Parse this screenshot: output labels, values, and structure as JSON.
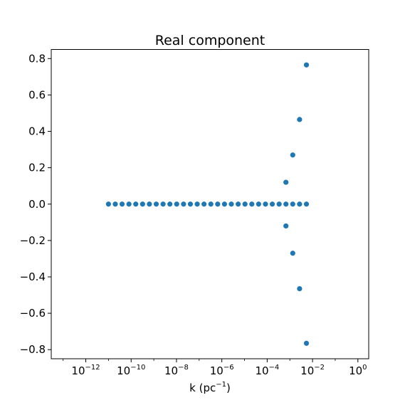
{
  "chart_data": {
    "type": "scatter",
    "title": "Real component",
    "xlabel": "k (pc",
    "xlabel_sup": "−1",
    "xlabel_close": ")",
    "x_scale": "log",
    "xlim": [
      3e-14,
      3
    ],
    "ylim": [
      -0.85,
      0.85
    ],
    "x_ticks": [
      {
        "value": 1e-12,
        "base": "10",
        "exp": "−12"
      },
      {
        "value": 1e-10,
        "base": "10",
        "exp": "−10"
      },
      {
        "value": 1e-08,
        "base": "10",
        "exp": "−8"
      },
      {
        "value": 1e-06,
        "base": "10",
        "exp": "−6"
      },
      {
        "value": 0.0001,
        "base": "10",
        "exp": "−4"
      },
      {
        "value": 0.01,
        "base": "10",
        "exp": "−2"
      },
      {
        "value": 1,
        "base": "10",
        "exp": "0"
      }
    ],
    "y_ticks": [
      {
        "value": 0.8,
        "label": "0.8"
      },
      {
        "value": 0.6,
        "label": "0.6"
      },
      {
        "value": 0.4,
        "label": "0.4"
      },
      {
        "value": 0.2,
        "label": "0.2"
      },
      {
        "value": 0.0,
        "label": "0.0"
      },
      {
        "value": -0.2,
        "label": "−0.2"
      },
      {
        "value": -0.4,
        "label": "−0.4"
      },
      {
        "value": -0.6,
        "label": "−0.6"
      },
      {
        "value": -0.8,
        "label": "−0.8"
      }
    ],
    "grid": false,
    "marker_color": "#1f77b4",
    "series": [
      {
        "points": [
          {
            "x": 1e-11,
            "y": 0.0
          },
          {
            "x": 2e-11,
            "y": 0.0
          },
          {
            "x": 4e-11,
            "y": 0.0
          },
          {
            "x": 8e-11,
            "y": 0.0
          },
          {
            "x": 1.6e-10,
            "y": 0.0
          },
          {
            "x": 3.2e-10,
            "y": 0.0
          },
          {
            "x": 6.4e-10,
            "y": 0.0
          },
          {
            "x": 1.28e-09,
            "y": 0.0
          },
          {
            "x": 2.56e-09,
            "y": 0.0
          },
          {
            "x": 5.12e-09,
            "y": 0.0
          },
          {
            "x": 1.02e-08,
            "y": 0.0
          },
          {
            "x": 2.05e-08,
            "y": 0.0
          },
          {
            "x": 4.1e-08,
            "y": 0.0
          },
          {
            "x": 8.19e-08,
            "y": 0.0
          },
          {
            "x": 1.64e-07,
            "y": 0.0
          },
          {
            "x": 3.28e-07,
            "y": 0.0
          },
          {
            "x": 6.55e-07,
            "y": 0.0
          },
          {
            "x": 1.31e-06,
            "y": 0.0
          },
          {
            "x": 2.62e-06,
            "y": 0.0
          },
          {
            "x": 5.24e-06,
            "y": 0.0
          },
          {
            "x": 1.05e-05,
            "y": 0.0
          },
          {
            "x": 2.1e-05,
            "y": 0.0
          },
          {
            "x": 4.19e-05,
            "y": 0.0
          },
          {
            "x": 8.39e-05,
            "y": 0.0
          },
          {
            "x": 0.000168,
            "y": 0.0
          },
          {
            "x": 0.000336,
            "y": 0.0
          },
          {
            "x": 0.000671,
            "y": 0.0
          },
          {
            "x": 0.00134,
            "y": 0.0
          },
          {
            "x": 0.00268,
            "y": 0.0
          },
          {
            "x": 0.00537,
            "y": 0.0
          },
          {
            "x": 0.000671,
            "y": 0.12
          },
          {
            "x": 0.000671,
            "y": -0.12
          },
          {
            "x": 0.00134,
            "y": 0.27
          },
          {
            "x": 0.00134,
            "y": -0.27
          },
          {
            "x": 0.00268,
            "y": 0.465
          },
          {
            "x": 0.00268,
            "y": -0.465
          },
          {
            "x": 0.00537,
            "y": 0.765
          },
          {
            "x": 0.00537,
            "y": -0.765
          }
        ]
      }
    ]
  }
}
